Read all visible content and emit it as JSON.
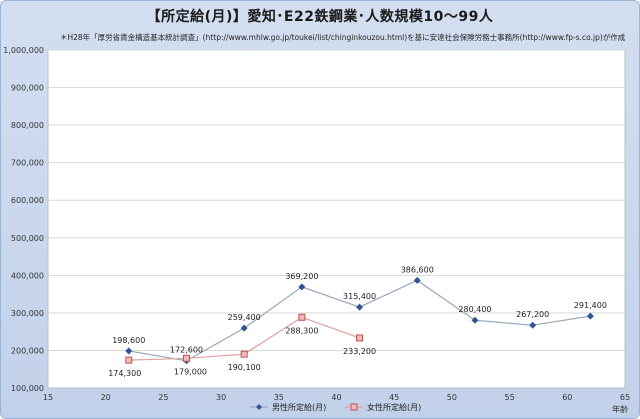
{
  "page": {
    "title": "【所定給(月)】愛知･E22鉄鋼業･人数規模10～99人",
    "note": "＊H28年「厚労省賃金構造基本統計調査」(http://www.mhlw.go.jp/toukei/list/chinginkouzou.html)を基に安達社会保険労務士事務所(http://www.fp-s.co.jp)が作成"
  },
  "colors": {
    "male_line": "#9aa7b8",
    "male_marker": "#2f5597",
    "female_line": "#e0a0a0",
    "female_marker": "#c0504d",
    "grid": "#d9d9d9"
  },
  "chart_data": {
    "type": "line",
    "xlabel": "年齢",
    "ylabel": "",
    "xlim": [
      15,
      65
    ],
    "ylim": [
      100000,
      1000000
    ],
    "x_ticks": [
      15,
      20,
      25,
      30,
      35,
      40,
      45,
      50,
      55,
      60,
      65
    ],
    "y_ticks": [
      100000,
      200000,
      300000,
      400000,
      500000,
      600000,
      700000,
      800000,
      900000,
      1000000
    ],
    "y_tick_labels": [
      "100,000",
      "200,000",
      "300,000",
      "400,000",
      "500,000",
      "600,000",
      "700,000",
      "800,000",
      "900,000",
      "1,000,000"
    ],
    "legend_position": "bottom",
    "series": [
      {
        "name": "男性所定給(月)",
        "marker": "diamond",
        "points": [
          {
            "x": 22,
            "y": 198600,
            "label": "198,600"
          },
          {
            "x": 27,
            "y": 172600,
            "label": "172,600"
          },
          {
            "x": 32,
            "y": 259400,
            "label": "259,400"
          },
          {
            "x": 37,
            "y": 369200,
            "label": "369,200"
          },
          {
            "x": 42,
            "y": 315400,
            "label": "315,400"
          },
          {
            "x": 47,
            "y": 386600,
            "label": "386,600"
          },
          {
            "x": 52,
            "y": 280400,
            "label": "280,400"
          },
          {
            "x": 57,
            "y": 267200,
            "label": "267,200"
          },
          {
            "x": 62,
            "y": 291400,
            "label": "291,400"
          }
        ]
      },
      {
        "name": "女性所定給(月)",
        "marker": "square",
        "points": [
          {
            "x": 22,
            "y": 174300,
            "label": "174,300"
          },
          {
            "x": 27,
            "y": 179000,
            "label": "179,000"
          },
          {
            "x": 32,
            "y": 190100,
            "label": "190,100"
          },
          {
            "x": 37,
            "y": 288300,
            "label": "288,300"
          },
          {
            "x": 42,
            "y": 233200,
            "label": "233,200"
          }
        ]
      }
    ]
  }
}
